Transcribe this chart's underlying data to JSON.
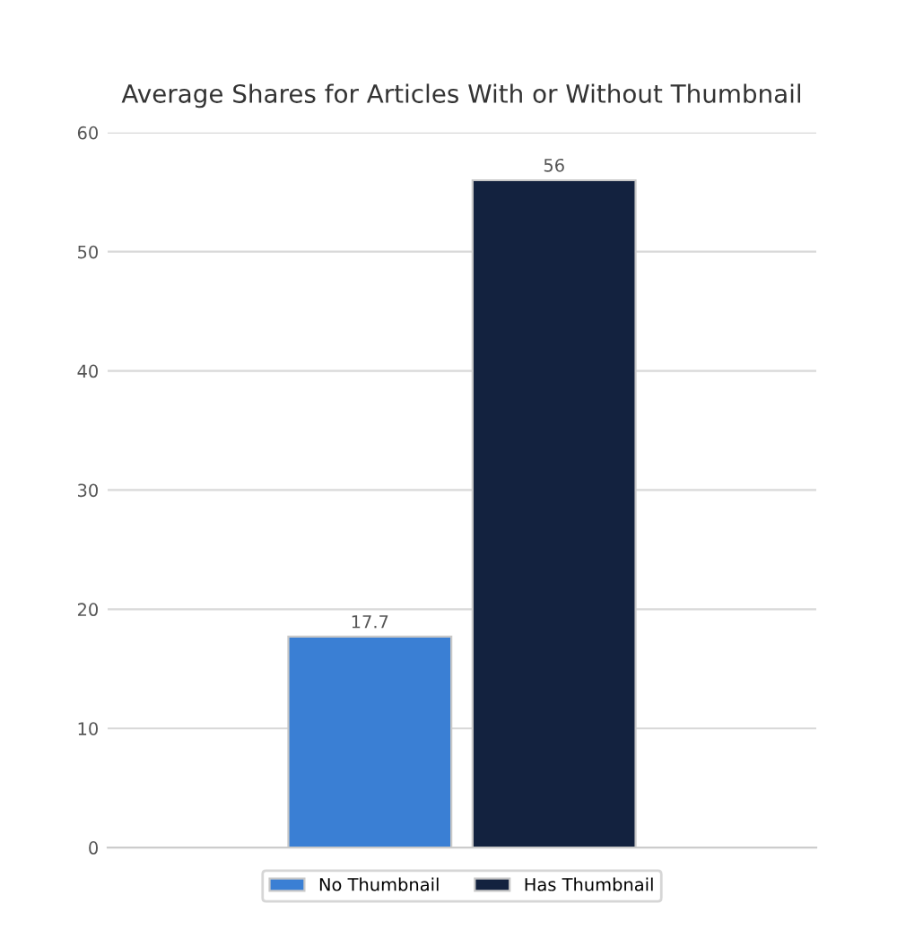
{
  "chart_data": {
    "type": "bar",
    "title": "Average Shares for Articles With or Without Thumbnail",
    "categories": [
      null
    ],
    "series": [
      {
        "name": "No Thumbnail",
        "color": "#3a7fd4",
        "values": [
          17.7
        ]
      },
      {
        "name": "Has Thumbnail",
        "color": "#13223f",
        "values": [
          56
        ]
      }
    ],
    "ylim": [
      0,
      60
    ],
    "yticks": [
      0,
      10,
      20,
      30,
      40,
      50,
      60
    ],
    "grid": "y",
    "legend": "bottom",
    "data_labels": true
  }
}
